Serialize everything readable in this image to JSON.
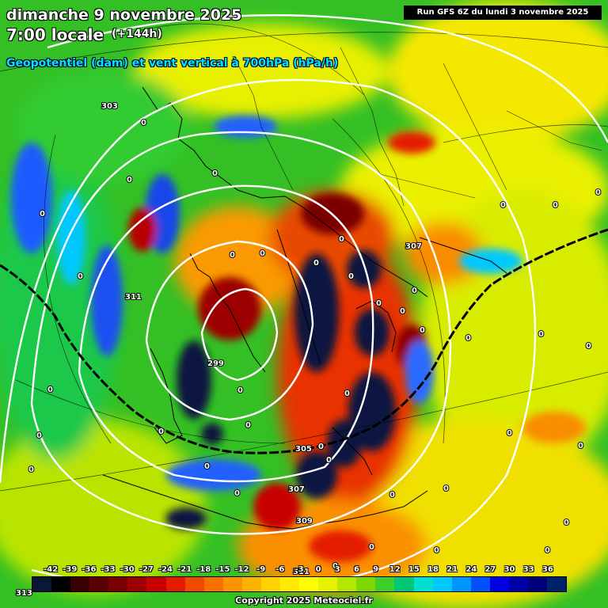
{
  "header": {
    "title_line1": "dimanche 9 novembre 2025",
    "title_line2": "7:00 locale",
    "lead_time": "(+144h)",
    "subtitle": "Geopotentiel (dam) et vent vertical à 700hPa (hPa/h)",
    "run_info": "Run GFS 6Z du lundi 3 novembre 2025"
  },
  "legend": {
    "ticks": [
      "-42",
      "-39",
      "-36",
      "-33",
      "-30",
      "-27",
      "-24",
      "-21",
      "-18",
      "-15",
      "-12",
      "-9",
      "-6",
      "-3",
      "0",
      "3",
      "6",
      "9",
      "12",
      "15",
      "18",
      "21",
      "24",
      "27",
      "30",
      "33",
      "36"
    ],
    "colors": [
      "#0a1836",
      "#000000",
      "#3a0000",
      "#5a0000",
      "#7a0000",
      "#9c0000",
      "#c80000",
      "#e41c00",
      "#f04a00",
      "#f87000",
      "#fc9400",
      "#fdb400",
      "#ffd200",
      "#ffea00",
      "#ffff00",
      "#e6f200",
      "#b4e600",
      "#7cd800",
      "#3ccf2a",
      "#00c878",
      "#00e0d0",
      "#00c8ff",
      "#0096ff",
      "#0050ff",
      "#0000e0",
      "#0000a8",
      "#000078",
      "#00226a"
    ]
  },
  "contour_labels": [
    {
      "text": "303"
    },
    {
      "text": "311"
    },
    {
      "text": "299"
    },
    {
      "text": "305"
    },
    {
      "text": "307"
    },
    {
      "text": "309"
    },
    {
      "text": "311"
    },
    {
      "text": "313"
    },
    {
      "text": "307"
    }
  ],
  "zero_labels": [
    "0",
    "0",
    "0",
    "0",
    "0",
    "0",
    "0",
    "0",
    "0",
    "0",
    "0",
    "0",
    "0",
    "0",
    "0",
    "0",
    "0",
    "0",
    "0",
    "0",
    "0",
    "0",
    "0",
    "0",
    "0",
    "0",
    "0",
    "0",
    "0",
    "0",
    "0",
    "0",
    "0",
    "0",
    "0",
    "0",
    "0",
    "0",
    "0",
    "0"
  ],
  "footer": {
    "copyright": "Copyright 2025 Meteociel.fr"
  },
  "colors": {
    "text_title": "#ffffff",
    "text_subtitle": "#00e5ff",
    "run_box_bg": "#000000"
  }
}
